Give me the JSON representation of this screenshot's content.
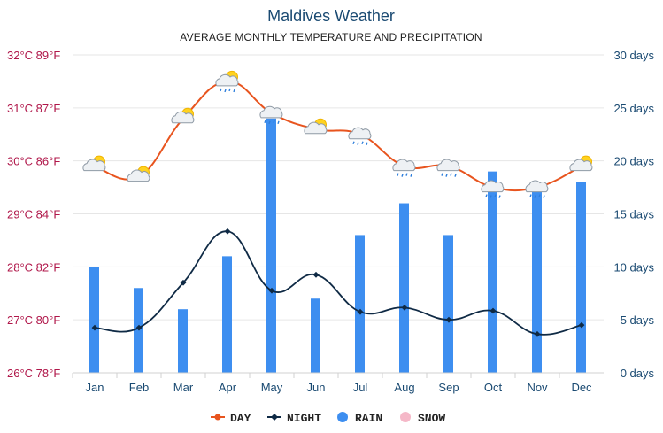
{
  "chart_data": {
    "type": "line",
    "title": "Maldives Weather",
    "subtitle": "AVERAGE MONTHLY TEMPERATURE AND PRECIPITATION",
    "categories": [
      "Jan",
      "Feb",
      "Mar",
      "Apr",
      "May",
      "Jun",
      "Jul",
      "Aug",
      "Sep",
      "Oct",
      "Nov",
      "Dec"
    ],
    "y_left": {
      "ylim": [
        26,
        32
      ],
      "ticks": [
        {
          "value": 32,
          "label": "32°C 89°F"
        },
        {
          "value": 31,
          "label": "31°C 87°F"
        },
        {
          "value": 30,
          "label": "30°C 86°F"
        },
        {
          "value": 29,
          "label": "29°C 84°F"
        },
        {
          "value": 28,
          "label": "28°C 82°F"
        },
        {
          "value": 27,
          "label": "27°C 80°F"
        },
        {
          "value": 26,
          "label": "26°C 78°F"
        }
      ]
    },
    "y_right": {
      "ylim": [
        0,
        30
      ],
      "ticks": [
        {
          "value": 30,
          "label": "30 days"
        },
        {
          "value": 25,
          "label": "25 days"
        },
        {
          "value": 20,
          "label": "20 days"
        },
        {
          "value": 15,
          "label": "15 days"
        },
        {
          "value": 10,
          "label": "10 days"
        },
        {
          "value": 5,
          "label": "5 days"
        },
        {
          "value": 0,
          "label": "0 days"
        }
      ]
    },
    "series": [
      {
        "name": "DAY",
        "kind": "line",
        "axis": "left",
        "color": "#e8541e",
        "values": [
          29.9,
          29.7,
          30.8,
          31.5,
          30.9,
          30.6,
          30.5,
          29.9,
          29.9,
          29.5,
          29.5,
          29.9
        ]
      },
      {
        "name": "NIGHT",
        "kind": "line",
        "axis": "left",
        "color": "#0f2a45",
        "values": [
          26.85,
          26.85,
          27.7,
          28.67,
          27.55,
          27.85,
          27.15,
          27.23,
          27.0,
          27.17,
          26.73,
          26.9
        ]
      },
      {
        "name": "RAIN",
        "kind": "bar",
        "axis": "right",
        "color": "#3d8ef0",
        "values": [
          10,
          8,
          6,
          11,
          24,
          7,
          13,
          16,
          13,
          19,
          18,
          18
        ]
      },
      {
        "name": "SNOW",
        "kind": "bar",
        "axis": "right",
        "color": "#f5b8c8",
        "values": [
          0,
          0,
          0,
          0,
          0,
          0,
          0,
          0,
          0,
          0,
          0,
          0
        ]
      }
    ],
    "weather_icons": [
      "sun-cloud",
      "sun-cloud",
      "sun-cloud",
      "sun-cloud-rain",
      "cloud-rain",
      "sun-cloud",
      "cloud-rain",
      "cloud-rain",
      "cloud-rain",
      "cloud-rain",
      "cloud-rain",
      "sun-cloud"
    ],
    "legend_position": "bottom-center"
  }
}
